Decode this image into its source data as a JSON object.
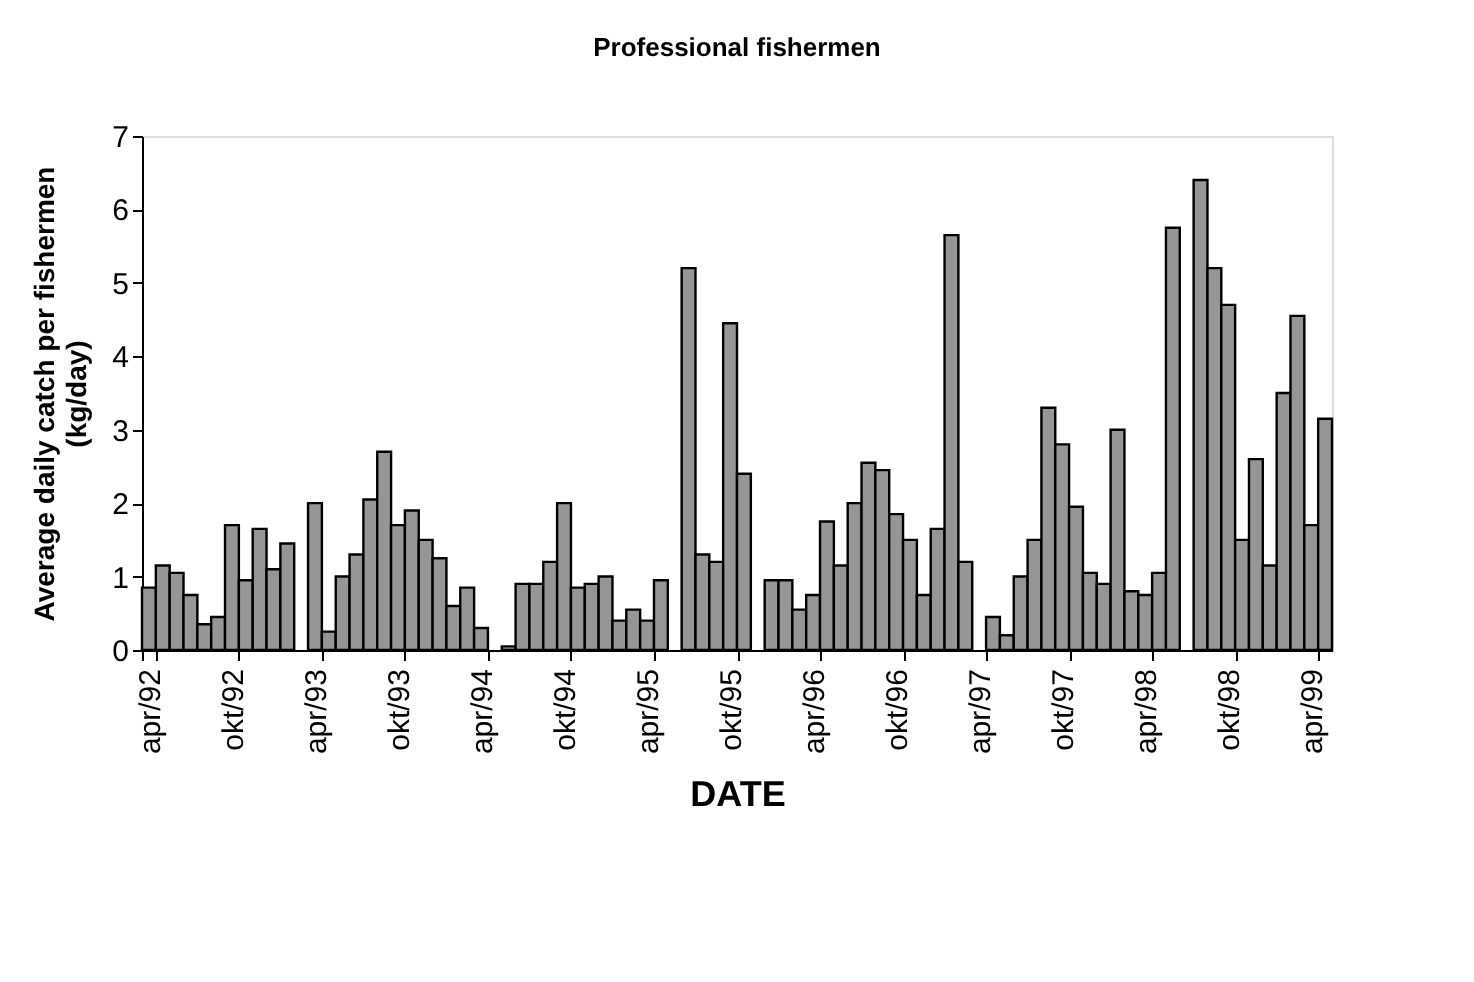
{
  "chart_data": {
    "type": "bar",
    "title": "Professional  fishermen",
    "xlabel": "DATE",
    "ylabel": "Average daily catch per fishermen\n(kg/day)",
    "categories": [
      "apr/92",
      null,
      null,
      null,
      null,
      null,
      "okt/92",
      null,
      null,
      null,
      null,
      null,
      "apr/93",
      null,
      null,
      null,
      null,
      null,
      "okt/93",
      null,
      null,
      null,
      null,
      null,
      "apr/94",
      null,
      null,
      null,
      null,
      null,
      "okt/94",
      null,
      null,
      null,
      null,
      null,
      "apr/95",
      null,
      null,
      null,
      null,
      null,
      "okt/95",
      null,
      null,
      null,
      null,
      null,
      "apr/96",
      null,
      null,
      null,
      null,
      null,
      "okt/96",
      null,
      null,
      null,
      null,
      null,
      "apr/97",
      null,
      null,
      null,
      null,
      null,
      "okt/97",
      null,
      null,
      null,
      null,
      null,
      "apr/98",
      null,
      null,
      null,
      null,
      null,
      "okt/98",
      null,
      null,
      null,
      null,
      null,
      "apr/99",
      null
    ],
    "series": [
      {
        "color": "#969696",
        "values": [
          0.85,
          1.15,
          1.05,
          0.75,
          0.35,
          0.45,
          1.7,
          0.95,
          1.65,
          1.1,
          1.45,
          null,
          2.0,
          0.25,
          1.0,
          1.3,
          2.05,
          2.7,
          1.7,
          1.9,
          1.5,
          1.25,
          0.6,
          0.85,
          0.3,
          null,
          0.05,
          0.9,
          0.9,
          1.2,
          2.0,
          0.85,
          0.9,
          1.0,
          0.4,
          0.55,
          0.4,
          0.95,
          null,
          5.2,
          1.3,
          1.2,
          4.45,
          2.4,
          null,
          0.95,
          0.95,
          0.55,
          0.75,
          1.75,
          1.15,
          2.0,
          2.55,
          2.45,
          1.85,
          1.5,
          0.75,
          1.65,
          5.65,
          1.2,
          null,
          0.45,
          0.2,
          1.0,
          1.5,
          3.3,
          2.8,
          1.95,
          1.05,
          0.9,
          3.0,
          0.8,
          0.75,
          1.05,
          5.75,
          null,
          6.4,
          5.2,
          4.7,
          1.5,
          2.6,
          1.15,
          3.5,
          4.55,
          1.7,
          3.15
        ]
      }
    ],
    "ylim": [
      0,
      7
    ],
    "yticks": [
      0,
      1,
      2,
      3,
      4,
      5,
      6,
      7
    ],
    "grid": false
  }
}
